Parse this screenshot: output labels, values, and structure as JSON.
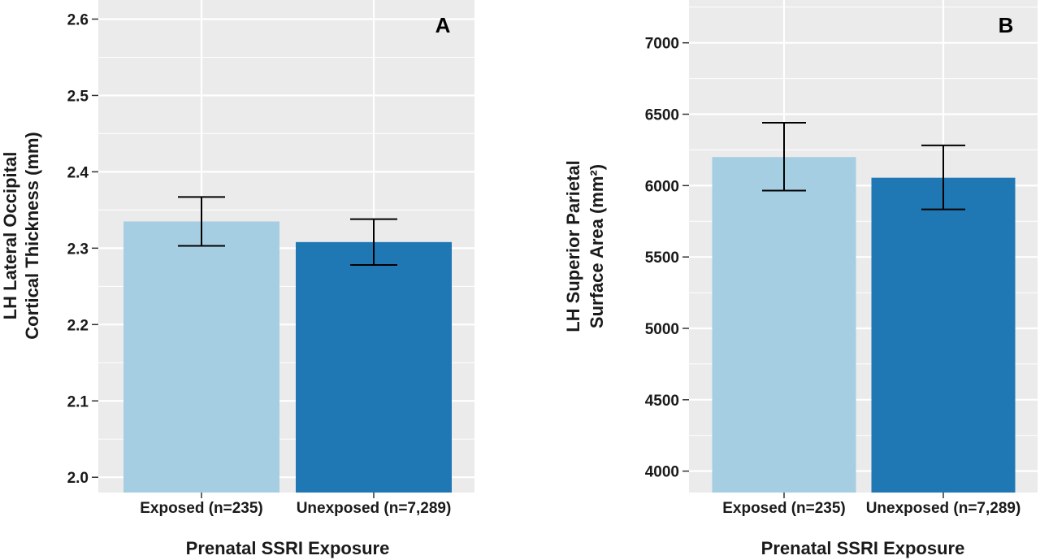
{
  "colors": {
    "exposed": "#a6cee3",
    "unexposed": "#1f78b4",
    "panel_bg": "#ebebeb",
    "grid": "#ffffff",
    "error_bar": "#000000"
  },
  "chart_data": [
    {
      "panel": "A",
      "type": "bar",
      "categories": [
        "Exposed (n=235)",
        "Unexposed (n=7,289)"
      ],
      "values": [
        2.335,
        2.308
      ],
      "error_low": [
        2.303,
        2.278
      ],
      "error_high": [
        2.367,
        2.338
      ],
      "ylabel_lines": [
        "LH Lateral Occipital",
        "Cortical Thickness (mm)"
      ],
      "xlabel": "Prenatal SSRI Exposure",
      "ylim": [
        1.98,
        2.625
      ],
      "yticks": [
        2.0,
        2.1,
        2.2,
        2.3,
        2.4,
        2.5,
        2.6
      ],
      "ytick_labels": [
        "2.0",
        "2.1",
        "2.2",
        "2.3",
        "2.4",
        "2.5",
        "2.6"
      ],
      "grid": true
    },
    {
      "panel": "B",
      "type": "bar",
      "categories": [
        "Exposed (n=235)",
        "Unexposed (n=7,289)"
      ],
      "values": [
        6200,
        6055
      ],
      "error_low": [
        5965,
        5833
      ],
      "error_high": [
        6440,
        6282
      ],
      "ylabel_lines": [
        "LH Superior Parietal",
        "Surface Area (mm²)"
      ],
      "xlabel": "Prenatal SSRI Exposure",
      "ylim": [
        3850,
        7300
      ],
      "yticks": [
        4000,
        4500,
        5000,
        5500,
        6000,
        6500,
        7000
      ],
      "ytick_labels": [
        "4000",
        "4500",
        "5000",
        "5500",
        "6000",
        "6500",
        "7000"
      ],
      "grid": true
    }
  ]
}
